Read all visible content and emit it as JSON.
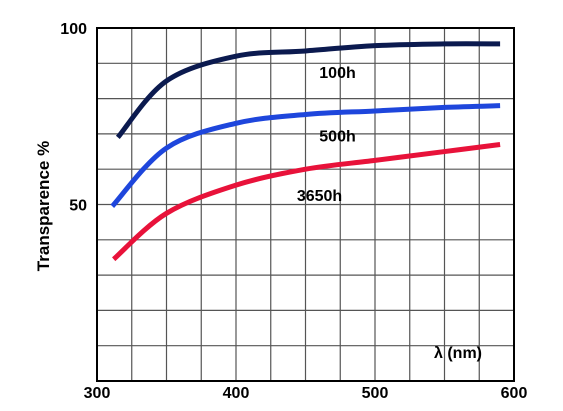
{
  "chart_data": {
    "type": "line",
    "title": "",
    "xlabel": "λ (nm)",
    "ylabel": "Transparence %",
    "xlim": [
      300,
      600
    ],
    "ylim": [
      0,
      100
    ],
    "x_ticks": [
      {
        "value": 300,
        "label": "300"
      },
      {
        "value": 400,
        "label": "400"
      },
      {
        "value": 500,
        "label": "500"
      },
      {
        "value": 600,
        "label": "600"
      }
    ],
    "y_ticks": [
      {
        "value": 50,
        "label": "50"
      },
      {
        "value": 100,
        "label": "100"
      }
    ],
    "grid": true,
    "grid_x_step": 25,
    "grid_y_step": 10,
    "series": [
      {
        "name": "100h",
        "color": "#0b1a4f",
        "points": [
          [
            315,
            69
          ],
          [
            350,
            85
          ],
          [
            400,
            92
          ],
          [
            450,
            93.5
          ],
          [
            500,
            95
          ],
          [
            550,
            95.5
          ],
          [
            590,
            95.5
          ]
        ]
      },
      {
        "name": "500h",
        "color": "#1e46dc",
        "points": [
          [
            311,
            49.5
          ],
          [
            350,
            66
          ],
          [
            400,
            73
          ],
          [
            450,
            75.5
          ],
          [
            500,
            76.5
          ],
          [
            550,
            77.5
          ],
          [
            590,
            78
          ]
        ]
      },
      {
        "name": "3650h",
        "color": "#e8123a",
        "points": [
          [
            312,
            34.5
          ],
          [
            350,
            47.5
          ],
          [
            400,
            55.5
          ],
          [
            450,
            60
          ],
          [
            500,
            62.5
          ],
          [
            550,
            65
          ],
          [
            590,
            67
          ]
        ]
      }
    ]
  }
}
